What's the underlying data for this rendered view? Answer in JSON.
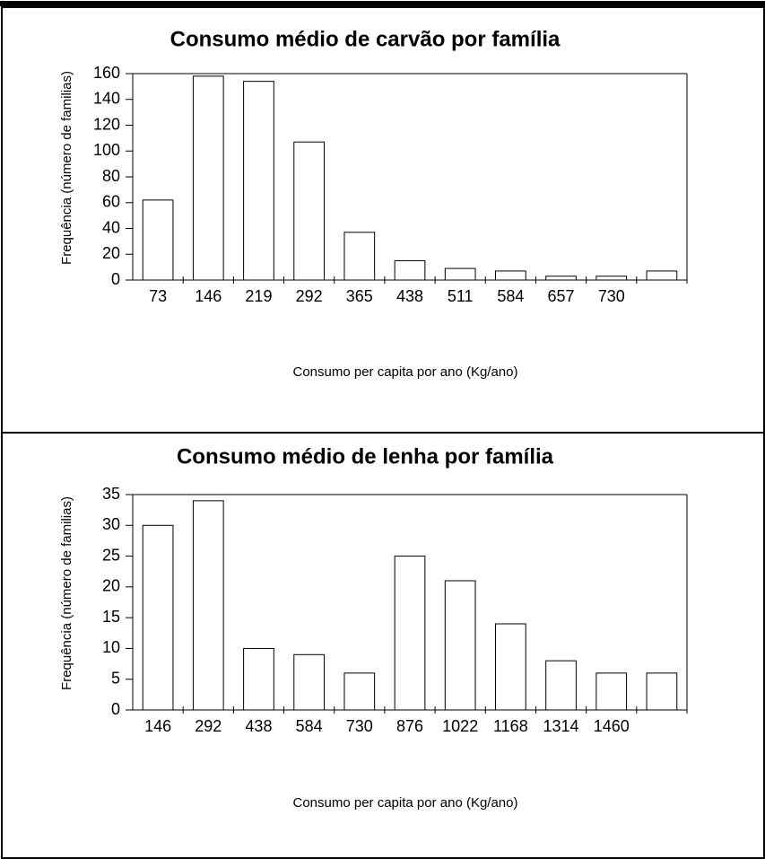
{
  "chart_data": [
    {
      "type": "bar",
      "title": "Consumo médio de carvão por família",
      "x_label": "Consumo per capita por ano (Kg/ano)",
      "y_label": "Frequência (número de familias)",
      "categories": [
        "73",
        "146",
        "219",
        "292",
        "365",
        "438",
        "511",
        "584",
        "657",
        "730",
        null
      ],
      "values": [
        62,
        158,
        154,
        107,
        37,
        15,
        9,
        7,
        3,
        3,
        7
      ],
      "color": "#ffffff",
      "ylim": [
        0,
        160
      ],
      "yticks": [
        0,
        20,
        40,
        60,
        80,
        100,
        120,
        140,
        160
      ],
      "grid": false
    },
    {
      "type": "bar",
      "title": "Consumo médio de lenha por família",
      "x_label": "Consumo per capita por ano (Kg/ano)",
      "y_label": "Frequência (número de familias)",
      "categories": [
        "146",
        "292",
        "438",
        "584",
        "730",
        "876",
        "1022",
        "1168",
        "1314",
        "1460",
        null
      ],
      "values": [
        30,
        34,
        10,
        9,
        6,
        25,
        21,
        14,
        8,
        6,
        6
      ],
      "color": "#ffffff",
      "ylim": [
        0,
        35
      ],
      "yticks": [
        0,
        5,
        10,
        15,
        20,
        25,
        30,
        35
      ],
      "grid": false
    }
  ]
}
